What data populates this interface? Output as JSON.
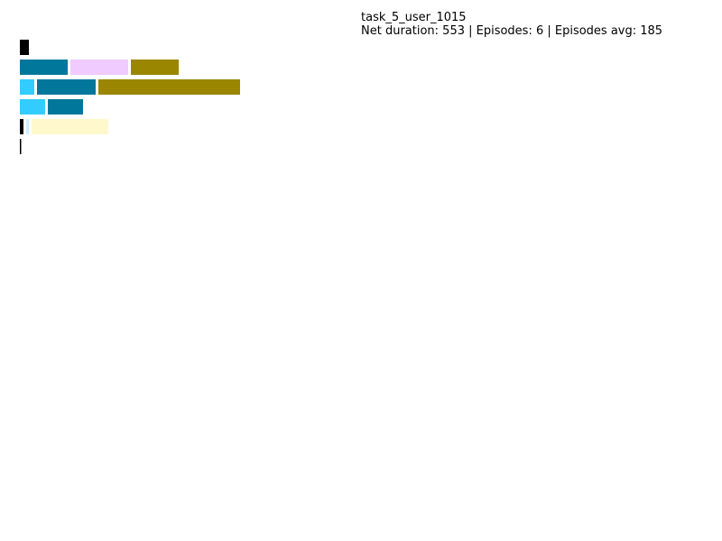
{
  "header": {
    "title": "task_5_user_1015",
    "summary": "Net duration: 553 | Episodes: 6 | Episodes avg: 185"
  },
  "chart_data": {
    "type": "bar",
    "orientation": "horizontal-timeline",
    "title": "task_5_user_1015",
    "subtitle": "Net duration: 553 | Episodes: 6 | Episodes avg: 185",
    "net_duration": 553,
    "episodes": 6,
    "episodes_avg": 185,
    "grid": false,
    "legend": false,
    "rows": [
      {
        "segments": [
          {
            "start": 0,
            "end": 10,
            "color": "#000000"
          }
        ]
      },
      {
        "segments": [
          {
            "start": 0,
            "end": 53,
            "color": "#00779b"
          },
          {
            "start": 56,
            "end": 120,
            "color": "#efcbff"
          },
          {
            "start": 123,
            "end": 176,
            "color": "#9a8600"
          }
        ]
      },
      {
        "segments": [
          {
            "start": 0,
            "end": 16,
            "color": "#33ccff"
          },
          {
            "start": 19,
            "end": 84,
            "color": "#00779b"
          },
          {
            "start": 87,
            "end": 244,
            "color": "#9a8600"
          }
        ]
      },
      {
        "segments": [
          {
            "start": 0,
            "end": 28,
            "color": "#33ccff"
          },
          {
            "start": 31,
            "end": 70,
            "color": "#00779b"
          }
        ]
      },
      {
        "segments": [
          {
            "start": 0,
            "end": 4,
            "color": "#000000"
          },
          {
            "start": 7,
            "end": 10,
            "color": "#cdefff"
          },
          {
            "start": 13,
            "end": 98,
            "color": "#fff8cc"
          }
        ]
      },
      {
        "segments": [
          {
            "start": 0,
            "end": 1.5,
            "color": "#000000"
          }
        ]
      }
    ]
  }
}
